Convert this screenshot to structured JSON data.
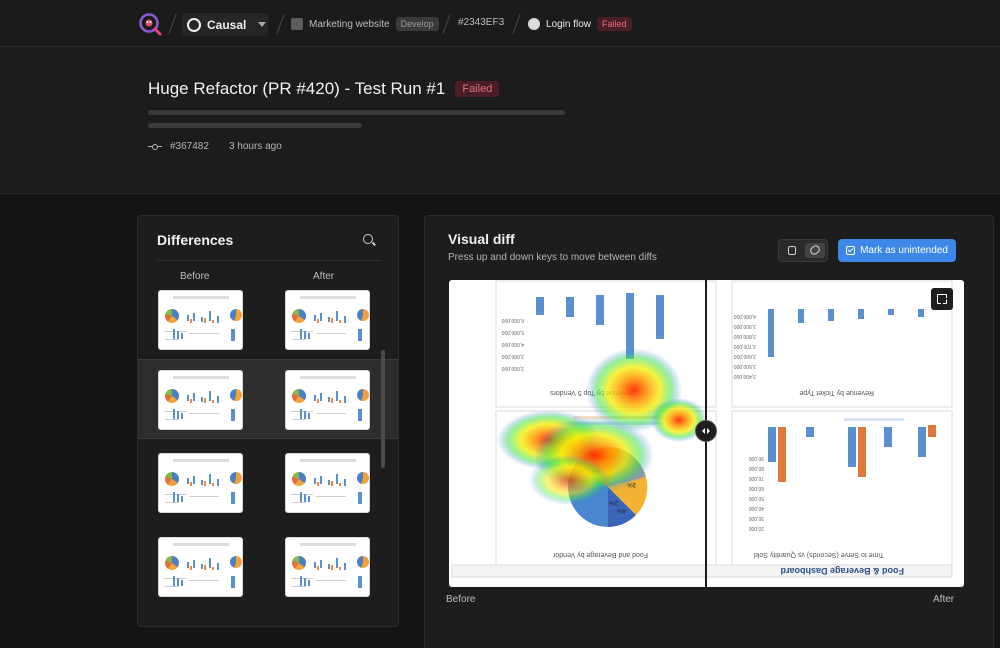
{
  "nav": {
    "project_name": "Causal",
    "crumb_site": "Marketing website",
    "crumb_site_badge": "Develop",
    "crumb_commit": "#2343EF3",
    "crumb_flow": "Login flow",
    "crumb_flow_badge": "Failed"
  },
  "header": {
    "title": "Huge Refactor (PR #420) - Test Run #1",
    "status": "Failed",
    "commit": "#367482",
    "time": "3 hours ago"
  },
  "differences": {
    "title": "Differences",
    "col_before": "Before",
    "col_after": "After",
    "selected_row": 1,
    "rows": 4
  },
  "visual_diff": {
    "title": "Visual diff",
    "subtitle": "Press up and down keys to move between diffs",
    "mark_button": "Mark as unintended",
    "label_before": "Before",
    "label_after": "After",
    "chart_text": {
      "tl_title": "Revenue by Top 5 Vendors",
      "bl_title": "Food and Beverage by Vendor",
      "tr_title": "Revenue by Ticket Type",
      "br_title": "Time to Serve (Seconds) vs Quantity Sold",
      "footer": "Food & Beverage Dashboard",
      "tl_ticks": [
        "2,000,000",
        "3,000,000",
        "4,000,000",
        "5,000,000",
        "6,000,000"
      ],
      "tr_ticks": [
        "3,400,000",
        "3,500,000",
        "3,600,000",
        "3,700,000",
        "3,800,000",
        "3,900,000",
        "4,000,000"
      ],
      "br_ticks": [
        "20,000",
        "30,000",
        "40,000",
        "50,000",
        "60,000",
        "70,000",
        "80,000",
        "90,000"
      ],
      "pie_labels": [
        "2%",
        "5%",
        "3%",
        "4%"
      ]
    }
  },
  "colors": {
    "accent": "#3d87e8",
    "failed_bg": "#4a1e26",
    "failed_text": "#e2707e"
  }
}
